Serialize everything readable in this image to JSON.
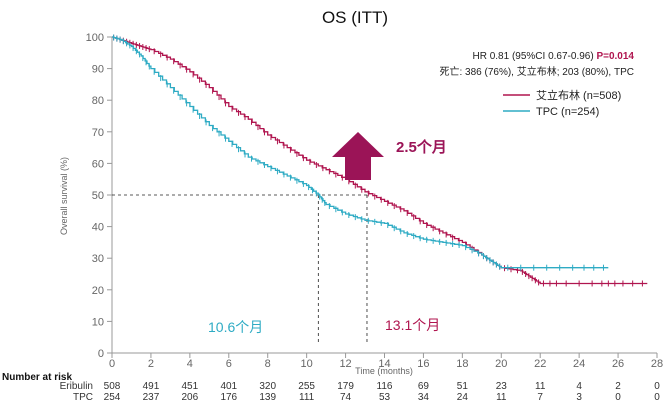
{
  "chart_data": {
    "type": "line",
    "title": "OS (ITT)",
    "xlabel": "Time (months)",
    "ylabel": "Overall survival (%)",
    "xlim": [
      0,
      28
    ],
    "ylim": [
      0,
      100
    ],
    "xticks": [
      0,
      2,
      4,
      6,
      8,
      10,
      12,
      14,
      16,
      18,
      20,
      22,
      24,
      26,
      28
    ],
    "yticks": [
      0,
      10,
      20,
      30,
      40,
      50,
      60,
      70,
      80,
      90,
      100
    ],
    "grid": false,
    "legend_position": "top-right",
    "series": [
      {
        "name": "艾立布林 (n=508)",
        "color": "#b0154f",
        "x": [
          0,
          0.5,
          1,
          1.5,
          2,
          3,
          4,
          5,
          6,
          7,
          8,
          9,
          10,
          11,
          12,
          13,
          14,
          15,
          16,
          17,
          18,
          19,
          19.5,
          20,
          21,
          21.5,
          22,
          23,
          25,
          26,
          27.5
        ],
        "y": [
          100,
          99,
          98,
          97,
          96,
          93,
          89,
          84,
          78,
          74,
          69,
          65,
          61,
          58,
          55,
          51,
          48,
          45,
          41,
          38,
          35,
          31,
          29,
          27,
          26,
          24,
          22,
          22,
          22,
          22,
          22
        ]
      },
      {
        "name": "TPC (n=254)",
        "color": "#2eabc4",
        "x": [
          0,
          0.5,
          1,
          1.5,
          2,
          3,
          4,
          5,
          6,
          7,
          8,
          9,
          10,
          10.6,
          11,
          12,
          13,
          14,
          15,
          16,
          17,
          18,
          19,
          19.5,
          20,
          22,
          24,
          25.5
        ],
        "y": [
          100,
          99,
          97,
          94,
          90,
          84,
          78,
          72,
          67,
          62,
          59,
          56,
          53,
          50,
          47,
          44,
          42,
          41,
          38,
          36,
          35,
          34,
          31,
          29,
          27,
          27,
          27,
          27
        ]
      }
    ],
    "annotations": {
      "hr_prefix": "HR 0.81 (95%CI 0.67-0.96) ",
      "p_value": "P=0.014",
      "deaths": "死亡: 386 (76%), 艾立布林; 203 (80%), TPC",
      "improvement": "2.5个月",
      "median_tpc": "10.6个月",
      "median_eribulin": "13.1个月",
      "median_tpc_value": 10.6,
      "median_eribulin_value": 13.1,
      "median_level": 50
    },
    "risk_table": {
      "title": "Number at risk",
      "rows": [
        {
          "label": "Eribulin",
          "values": [
            508,
            491,
            451,
            401,
            320,
            255,
            179,
            116,
            69,
            51,
            23,
            11,
            4,
            2,
            0
          ]
        },
        {
          "label": "TPC",
          "values": [
            254,
            237,
            206,
            176,
            139,
            111,
            74,
            53,
            34,
            24,
            11,
            7,
            3,
            0,
            0
          ]
        }
      ]
    },
    "colors": {
      "eribulin": "#b0154f",
      "tpc": "#2eabc4",
      "arrow": "#9b1457",
      "p_value": "#b0154f"
    }
  }
}
